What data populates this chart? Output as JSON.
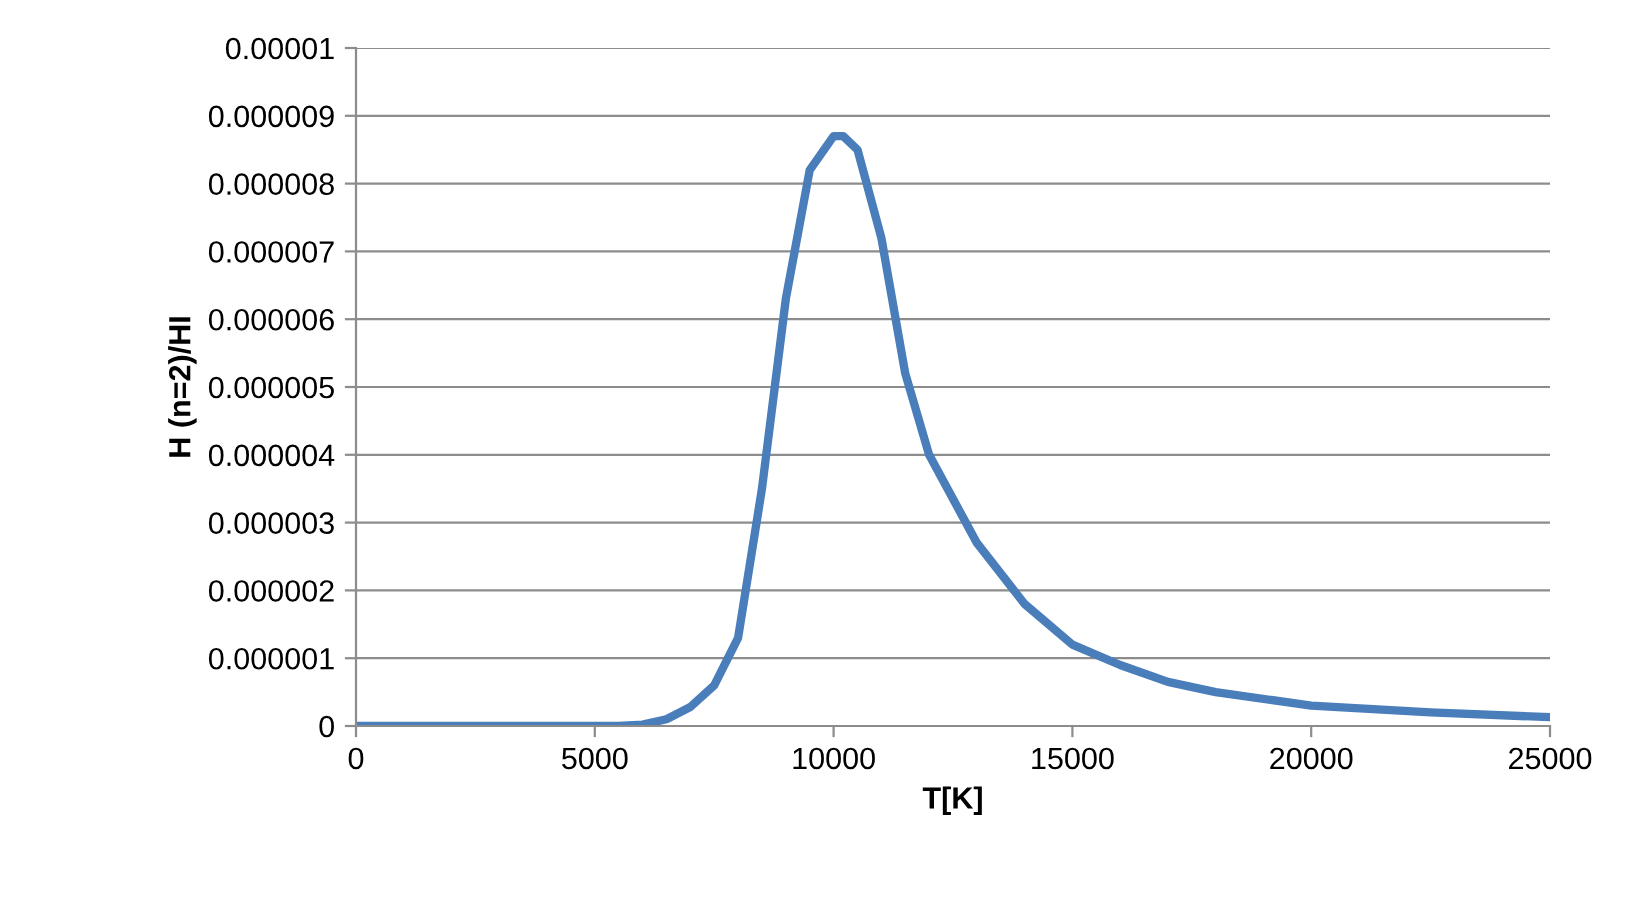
{
  "chart_data": {
    "type": "line",
    "xlabel": "T[K]",
    "ylabel": "H (n=2)/HI",
    "x": [
      0,
      1000,
      2000,
      3000,
      4000,
      4500,
      5000,
      5500,
      6000,
      6500,
      7000,
      7500,
      8000,
      8500,
      9000,
      9500,
      10000,
      10200,
      10500,
      11000,
      11500,
      12000,
      13000,
      14000,
      15000,
      16000,
      17000,
      18000,
      20000,
      22500,
      25000
    ],
    "series": [
      {
        "color": "#4a7ebb",
        "values": [
          0,
          0,
          0,
          0,
          0,
          0,
          0,
          0,
          2e-08,
          1e-07,
          2.8e-07,
          6e-07,
          1.3e-06,
          3.5e-06,
          6.3e-06,
          8.2e-06,
          8.7e-06,
          8.7e-06,
          8.5e-06,
          7.2e-06,
          5.2e-06,
          4e-06,
          2.7e-06,
          1.8e-06,
          1.2e-06,
          9e-07,
          6.5e-07,
          5e-07,
          3e-07,
          2e-07,
          1.3e-07
        ]
      }
    ],
    "xlim": [
      0,
      25000
    ],
    "xticks": [
      0,
      5000,
      10000,
      15000,
      20000,
      25000
    ],
    "ylim": [
      0,
      1e-05
    ],
    "yticks": [
      {
        "value": 0,
        "label": "0"
      },
      {
        "value": 1e-06,
        "label": "0.000001"
      },
      {
        "value": 2e-06,
        "label": "0.000002"
      },
      {
        "value": 3e-06,
        "label": "0.000003"
      },
      {
        "value": 4e-06,
        "label": "0.000004"
      },
      {
        "value": 5e-06,
        "label": "0.000005"
      },
      {
        "value": 6e-06,
        "label": "0.000006"
      },
      {
        "value": 7e-06,
        "label": "0.000007"
      },
      {
        "value": 8e-06,
        "label": "0.000008"
      },
      {
        "value": 9e-06,
        "label": "0.000009"
      },
      {
        "value": 1e-05,
        "label": "0.00001"
      }
    ],
    "grid": "y",
    "legend": false,
    "marker": "none",
    "line_style": "solid"
  }
}
